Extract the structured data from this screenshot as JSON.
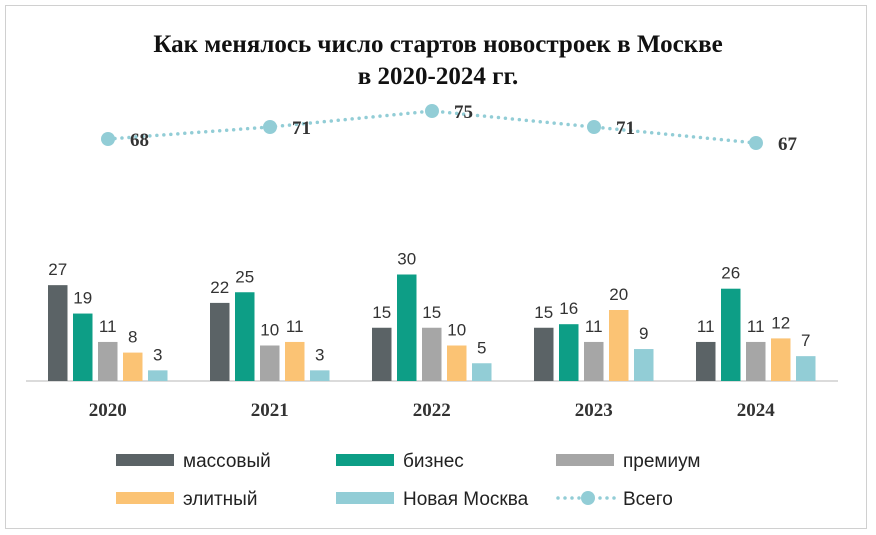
{
  "chart_data": {
    "type": "bar",
    "title_lines": [
      "Как менялось число стартов новостроек в Москве",
      "в 2020-2024 гг."
    ],
    "categories": [
      "2020",
      "2021",
      "2022",
      "2023",
      "2024"
    ],
    "series": [
      {
        "name": "массовый",
        "color": "#5b6366",
        "values": [
          27,
          22,
          15,
          15,
          11
        ]
      },
      {
        "name": "бизнес",
        "color": "#0d9e86",
        "values": [
          19,
          25,
          30,
          16,
          26
        ]
      },
      {
        "name": "премиум",
        "color": "#a6a6a6",
        "values": [
          11,
          10,
          15,
          11,
          11
        ]
      },
      {
        "name": "элитный",
        "color": "#fbc374",
        "values": [
          8,
          11,
          10,
          20,
          12
        ]
      },
      {
        "name": "Новая Москва",
        "color": "#92cdd6",
        "values": [
          3,
          3,
          5,
          9,
          7
        ]
      }
    ],
    "total_series": {
      "name": "Всего",
      "type": "line",
      "style": "dotted with circle markers",
      "color": "#92cdd6",
      "values": [
        68,
        71,
        75,
        71,
        67
      ]
    },
    "legend_position": "bottom",
    "grid": false
  }
}
